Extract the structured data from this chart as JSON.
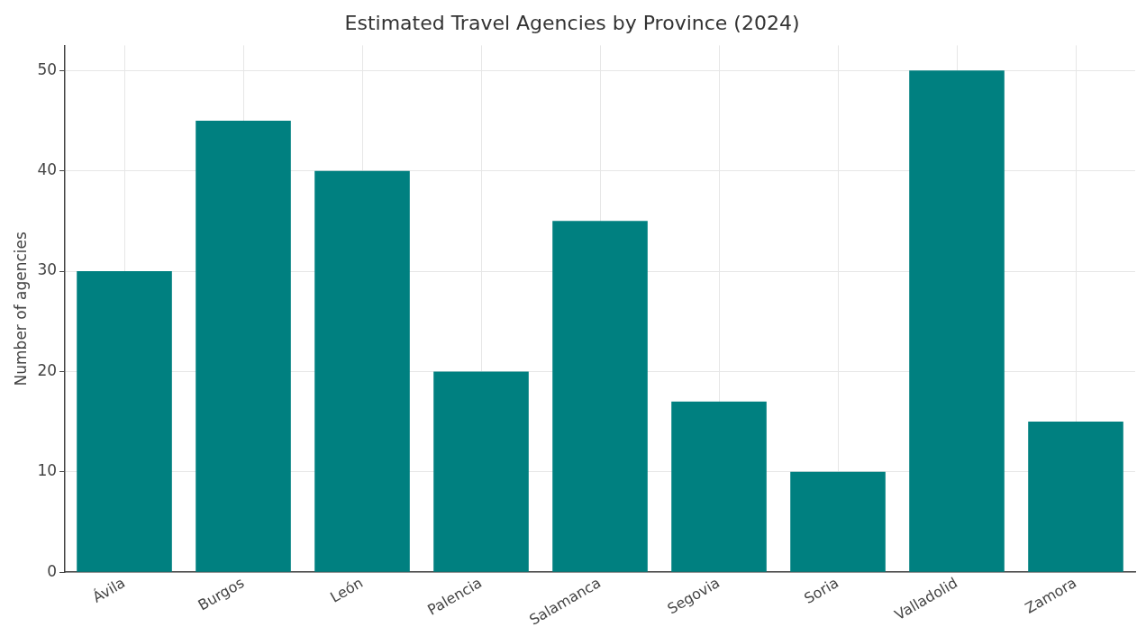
{
  "chart_data": {
    "type": "bar",
    "title": "Estimated Travel Agencies by Province (2024)",
    "ylabel": "Number of agencies",
    "categories": [
      "Ávila",
      "Burgos",
      "León",
      "Palencia",
      "Salamanca",
      "Segovia",
      "Soria",
      "Valladolid",
      "Zamora"
    ],
    "values": [
      30,
      45,
      40,
      20,
      35,
      17,
      10,
      50,
      15
    ],
    "color": "#008080",
    "ylim": [
      0,
      52.5
    ],
    "yticks": [
      0,
      10,
      20,
      30,
      40,
      50
    ],
    "grid": true
  }
}
